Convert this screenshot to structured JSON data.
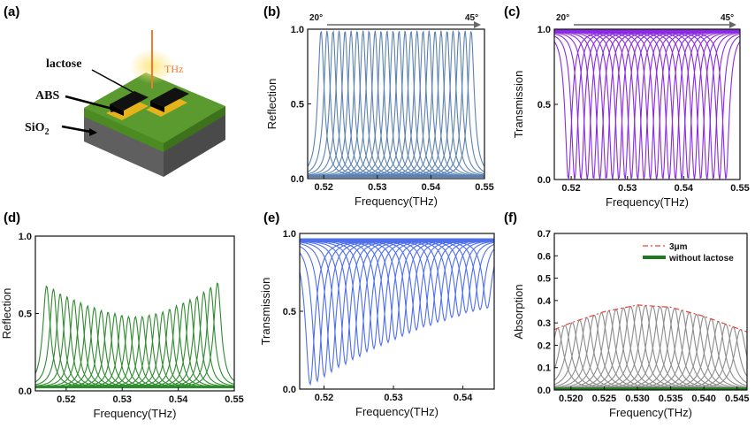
{
  "schematic": {
    "panel_label": "(a)",
    "lactose_label": "lactose",
    "abs_label": "ABS",
    "sio2_label": "SiO",
    "sio2_sub": "2",
    "thz_label": "THz",
    "colors": {
      "top": "#5a9a2e",
      "base": "#6e6e6e",
      "gold": "#e6b21b",
      "beam": "#f07a30"
    }
  },
  "chart_data": [
    {
      "id": "b",
      "panel_label": "(b)",
      "type": "line",
      "xlabel": "Frequency(THz)",
      "ylabel": "Reflection",
      "xlim": [
        0.517,
        0.55
      ],
      "ylim": [
        0,
        1
      ],
      "xticks": [
        "0.52",
        "0.53",
        "0.54",
        "0.55"
      ],
      "xtick_values": [
        0.52,
        0.53,
        0.54,
        0.55
      ],
      "yticks": [
        "0.0",
        "0.5",
        "1.0"
      ],
      "ytick_values": [
        0,
        0.5,
        1
      ],
      "color": "#5b82b3",
      "shape": "peak",
      "annotation": {
        "start": "20°",
        "end": "45°"
      },
      "series": {
        "count": 26,
        "center_start": 0.5195,
        "center_end": 0.5475,
        "peak": [
          0.99,
          0.99
        ],
        "width": 0.0007,
        "baseline": 0.01
      }
    },
    {
      "id": "c",
      "panel_label": "(c)",
      "type": "line",
      "xlabel": "Frequency(THz)",
      "ylabel": "Transmission",
      "xlim": [
        0.517,
        0.55
      ],
      "ylim": [
        0,
        1
      ],
      "xticks": [
        "0.52",
        "0.53",
        "0.54",
        "0.55"
      ],
      "xtick_values": [
        0.52,
        0.53,
        0.54,
        0.55
      ],
      "yticks": [
        "0.0",
        "0.5",
        "1.0"
      ],
      "ytick_values": [
        0,
        0.5,
        1
      ],
      "color": "#8a2be2",
      "shape": "dip",
      "annotation": {
        "start": "20°",
        "end": "45°"
      },
      "series": {
        "count": 26,
        "center_start": 0.5195,
        "center_end": 0.5475,
        "depth": [
          0.99,
          0.99
        ],
        "width": 0.0007,
        "top": 0.99
      }
    },
    {
      "id": "d",
      "panel_label": "(d)",
      "type": "line",
      "xlabel": "Frequency(THz)",
      "ylabel": "Reflection",
      "xlim": [
        0.5145,
        0.55
      ],
      "ylim": [
        0,
        1
      ],
      "xticks": [
        "0.52",
        "0.53",
        "0.54",
        "0.55"
      ],
      "xtick_values": [
        0.52,
        0.53,
        0.54,
        0.55
      ],
      "yticks": [
        "0.0",
        "0.5",
        "1.0"
      ],
      "ytick_values": [
        0,
        0.5,
        1
      ],
      "color": "#2e8b2e",
      "shape": "peak",
      "series": {
        "count": 26,
        "center_start": 0.5165,
        "center_end": 0.547,
        "peak": [
          0.68,
          0.66,
          0.63,
          0.61,
          0.59,
          0.57,
          0.55,
          0.54,
          0.52,
          0.51,
          0.5,
          0.49,
          0.48,
          0.48,
          0.48,
          0.49,
          0.5,
          0.51,
          0.53,
          0.55,
          0.57,
          0.59,
          0.61,
          0.64,
          0.67,
          0.7
        ],
        "width": 0.0008,
        "baseline": 0.02
      }
    },
    {
      "id": "e",
      "panel_label": "(e)",
      "type": "line",
      "xlabel": "Frequency(THz)",
      "ylabel": "Transmission",
      "xlim": [
        0.5165,
        0.5445
      ],
      "ylim": [
        0,
        1
      ],
      "xticks": [
        "0.52",
        "0.53",
        "0.54"
      ],
      "xtick_values": [
        0.52,
        0.53,
        0.54
      ],
      "yticks": [
        "0.0",
        "0.5",
        "1.0"
      ],
      "ytick_values": [
        0,
        0.5,
        1
      ],
      "color": "#4f6fe8",
      "shape": "dip",
      "series": {
        "count": 26,
        "center_start": 0.518,
        "center_end": 0.5435,
        "depth": [
          0.93,
          0.91,
          0.88,
          0.85,
          0.82,
          0.8,
          0.77,
          0.75,
          0.72,
          0.7,
          0.68,
          0.66,
          0.64,
          0.62,
          0.6,
          0.58,
          0.56,
          0.55,
          0.53,
          0.52,
          0.5,
          0.49,
          0.47,
          0.46,
          0.45,
          0.44
        ],
        "width": 0.0008,
        "top": 0.96
      }
    },
    {
      "id": "f",
      "panel_label": "(f)",
      "type": "line",
      "xlabel": "Frequency(THz)",
      "ylabel": "Absorption",
      "xlim": [
        0.5175,
        0.5465
      ],
      "ylim": [
        0,
        0.7
      ],
      "xticks": [
        "0.520",
        "0.525",
        "0.530",
        "0.535",
        "0.540",
        "0.545"
      ],
      "xtick_values": [
        0.52,
        0.525,
        0.53,
        0.535,
        0.54,
        0.545
      ],
      "yticks": [
        "0.0",
        "0.1",
        "0.2",
        "0.3",
        "0.4",
        "0.5",
        "0.6",
        "0.7"
      ],
      "ytick_values": [
        0,
        0.1,
        0.2,
        0.3,
        0.4,
        0.5,
        0.6,
        0.7
      ],
      "color": "#8c8c8c",
      "shape": "peak",
      "legend": [
        {
          "name": "3μm",
          "color": "#e8453c",
          "style": "dashdot"
        },
        {
          "name": "without lactose",
          "color": "#1e7a1e",
          "style": "solid"
        }
      ],
      "legend_position": "top-right",
      "envelope": {
        "x": [
          0.5175,
          0.52,
          0.525,
          0.53,
          0.535,
          0.54,
          0.5465
        ],
        "y": [
          0.27,
          0.3,
          0.35,
          0.38,
          0.37,
          0.33,
          0.26
        ]
      },
      "baseline_series": {
        "y": 0.005
      },
      "series": {
        "count": 26,
        "center_start": 0.518,
        "center_end": 0.5455,
        "width": 0.0011,
        "baseline": 0.0
      }
    }
  ]
}
